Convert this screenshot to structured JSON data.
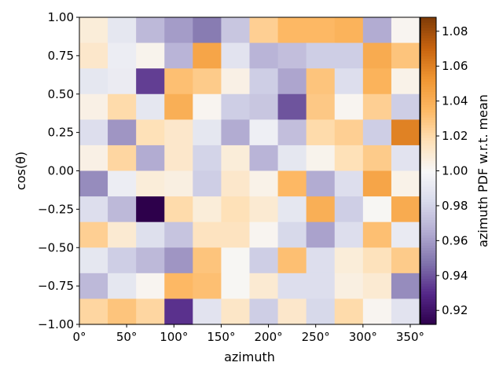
{
  "chart_data": {
    "type": "heatmap",
    "xlabel": "azimuth",
    "ylabel": "cos(θ)",
    "colorbar_label": "azimuth PDF w.r.t. mean",
    "colormap": "PuOr_r",
    "xlim": [
      0,
      360
    ],
    "ylim": [
      -1,
      1
    ],
    "clim": [
      0.912,
      1.088
    ],
    "x_ticks": [
      {
        "value": 0,
        "label": "0°"
      },
      {
        "value": 50,
        "label": "50°"
      },
      {
        "value": 100,
        "label": "100°"
      },
      {
        "value": 150,
        "label": "150°"
      },
      {
        "value": 200,
        "label": "200°"
      },
      {
        "value": 250,
        "label": "250°"
      },
      {
        "value": 300,
        "label": "300°"
      },
      {
        "value": 350,
        "label": "350°"
      }
    ],
    "y_ticks": [
      {
        "value": 1.0,
        "label": "1.00"
      },
      {
        "value": 0.75,
        "label": "0.75"
      },
      {
        "value": 0.5,
        "label": "0.50"
      },
      {
        "value": 0.25,
        "label": "0.25"
      },
      {
        "value": 0.0,
        "label": "0.00"
      },
      {
        "value": -0.25,
        "label": "−0.25"
      },
      {
        "value": -0.5,
        "label": "−0.50"
      },
      {
        "value": -0.75,
        "label": "−0.75"
      },
      {
        "value": -1.0,
        "label": "−1.00"
      }
    ],
    "colorbar_ticks": [
      {
        "value": 0.92,
        "label": "0.92"
      },
      {
        "value": 0.94,
        "label": "0.94"
      },
      {
        "value": 0.96,
        "label": "0.96"
      },
      {
        "value": 0.98,
        "label": "0.98"
      },
      {
        "value": 1.0,
        "label": "1.00"
      },
      {
        "value": 1.02,
        "label": "1.02"
      },
      {
        "value": 1.04,
        "label": "1.04"
      },
      {
        "value": 1.06,
        "label": "1.06"
      },
      {
        "value": 1.08,
        "label": "1.08"
      }
    ],
    "x_bins": 12,
    "y_bins": 12,
    "values_top_to_bottom": [
      [
        1.008,
        0.99,
        0.97,
        0.96,
        0.95,
        0.975,
        1.025,
        1.035,
        1.035,
        1.038,
        0.965,
        1.002
      ],
      [
        1.012,
        0.994,
        1.003,
        0.968,
        1.045,
        0.988,
        0.968,
        0.972,
        0.978,
        0.978,
        1.042,
        1.03
      ],
      [
        0.99,
        0.993,
        0.935,
        1.032,
        1.027,
        1.005,
        0.978,
        0.963,
        1.03,
        0.985,
        1.038,
        1.004
      ],
      [
        1.005,
        1.02,
        0.99,
        1.04,
        1.002,
        0.978,
        0.975,
        0.94,
        1.028,
        1.002,
        1.025,
        0.978
      ],
      [
        0.985,
        0.958,
        1.017,
        1.012,
        0.99,
        0.965,
        0.995,
        0.972,
        1.02,
        1.025,
        0.978,
        1.06
      ],
      [
        1.005,
        1.022,
        0.965,
        1.012,
        0.98,
        1.008,
        0.968,
        0.99,
        1.003,
        1.017,
        1.027,
        0.988
      ],
      [
        0.955,
        0.994,
        1.008,
        1.006,
        0.978,
        1.012,
        1.004,
        1.035,
        0.965,
        0.985,
        1.045,
        1.004
      ],
      [
        0.985,
        0.97,
        0.912,
        1.02,
        1.008,
        1.017,
        1.01,
        0.99,
        1.04,
        0.978,
        1.001,
        1.042
      ],
      [
        1.025,
        1.01,
        0.986,
        0.974,
        1.015,
        1.015,
        1.002,
        0.982,
        0.962,
        0.985,
        1.032,
        0.992
      ],
      [
        0.99,
        0.978,
        0.97,
        0.958,
        1.03,
        1.001,
        0.978,
        1.032,
        0.985,
        1.008,
        1.016,
        1.027
      ],
      [
        0.97,
        0.99,
        1.002,
        1.035,
        1.032,
        1.001,
        1.01,
        0.985,
        0.985,
        1.006,
        1.01,
        0.955
      ],
      [
        1.022,
        1.03,
        1.022,
        0.932,
        0.988,
        1.013,
        0.978,
        1.012,
        0.982,
        1.02,
        1.002,
        0.988
      ]
    ]
  }
}
